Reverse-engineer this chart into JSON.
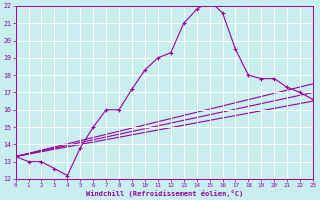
{
  "xlabel": "Windchill (Refroidissement éolien,°C)",
  "bg_color": "#c8eef0",
  "line_color": "#990099",
  "grid_color": "#ffffff",
  "xmin": 0,
  "xmax": 23,
  "ymin": 12,
  "ymax": 22,
  "yticks": [
    12,
    13,
    14,
    15,
    16,
    17,
    18,
    19,
    20,
    21,
    22
  ],
  "xticks": [
    0,
    1,
    2,
    3,
    4,
    5,
    6,
    7,
    8,
    9,
    10,
    11,
    12,
    13,
    14,
    15,
    16,
    17,
    18,
    19,
    20,
    21,
    22,
    23
  ],
  "main_series": {
    "x": [
      0,
      1,
      2,
      3,
      4,
      5,
      6,
      7,
      8,
      9,
      10,
      11,
      12,
      13,
      14,
      15,
      16,
      17,
      18,
      19,
      20,
      21,
      22,
      23
    ],
    "y": [
      13.3,
      13.0,
      13.0,
      12.6,
      12.2,
      13.8,
      15.0,
      16.0,
      16.0,
      17.2,
      18.3,
      19.0,
      19.3,
      21.0,
      21.8,
      22.3,
      21.6,
      19.5,
      18.0,
      17.8,
      17.8,
      17.3,
      17.0,
      16.6
    ]
  },
  "ref_lines": [
    {
      "x": [
        0,
        23
      ],
      "y": [
        13.3,
        16.5
      ]
    },
    {
      "x": [
        0,
        23
      ],
      "y": [
        13.3,
        17.0
      ]
    },
    {
      "x": [
        0,
        23
      ],
      "y": [
        13.3,
        17.5
      ]
    }
  ]
}
